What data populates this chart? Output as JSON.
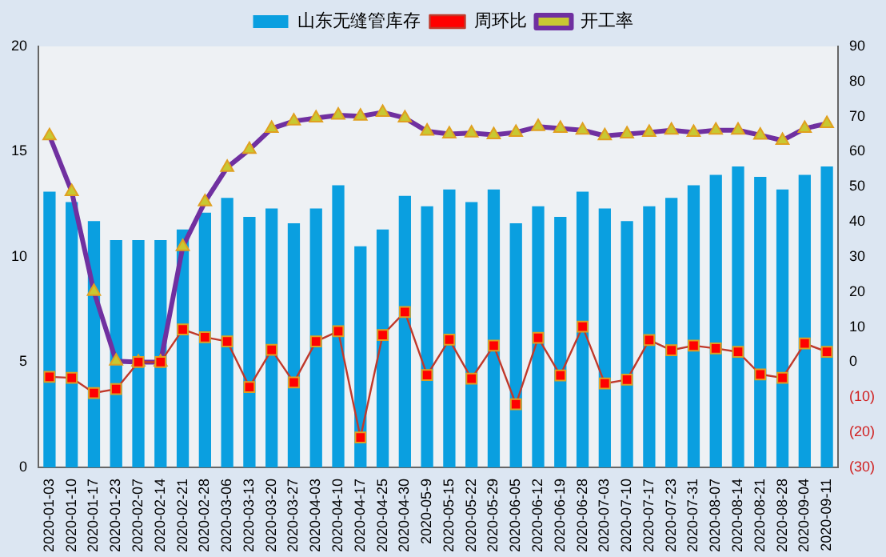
{
  "chart_data": {
    "type": "bar",
    "categories": [
      "2020-01-03",
      "2020-01-10",
      "2020-01-17",
      "2020-01-23",
      "2020-02-07",
      "2020-02-14",
      "2020-02-21",
      "2020-02-28",
      "2020-03-06",
      "2020-03-13",
      "2020-03-20",
      "2020-03-27",
      "2020-04-03",
      "2020-04-10",
      "2020-04-17",
      "2020-04-25",
      "2020-04-30",
      "2020-05-9",
      "2020-05-15",
      "2020-05-22",
      "2020-05-29",
      "2020-06-05",
      "2020-06-12",
      "2020-06-19",
      "2020-06-28",
      "2020-07-03",
      "2020-07-10",
      "2020-07-17",
      "2020-07-23",
      "2020-07-31",
      "2020-08-07",
      "2020-08-14",
      "2020-08-21",
      "2020-08-28",
      "2020-09-04",
      "2020-09-11"
    ],
    "series": [
      {
        "name": "山东无缝管库存",
        "color": "#0a9fe0",
        "values": [
          13.1,
          12.6,
          11.7,
          10.8,
          10.8,
          10.8,
          11.3,
          12.1,
          12.8,
          11.9,
          12.3,
          11.6,
          12.3,
          13.4,
          10.5,
          11.3,
          12.9,
          12.4,
          13.2,
          12.6,
          13.2,
          11.6,
          12.4,
          11.9,
          13.1,
          12.3,
          11.7,
          12.4,
          12.8,
          13.4,
          13.9,
          14.3,
          13.8,
          13.2,
          13.9,
          14.3
        ]
      },
      {
        "name": "周环比",
        "type": "line",
        "axis": "y2",
        "color": "#c0392b",
        "marker": "square",
        "values": [
          -4.2,
          -4.5,
          -8.8,
          -7.7,
          0,
          0,
          9.3,
          7.1,
          5.9,
          -7.1,
          3.5,
          -5.8,
          5.9,
          8.8,
          -21.5,
          7.7,
          14.3,
          -3.7,
          6.4,
          -4.7,
          4.7,
          -12,
          6.9,
          -3.8,
          10.1,
          -6.1,
          -5,
          6.3,
          3.4,
          4.7,
          3.9,
          2.9,
          -3.5,
          -4.5,
          5.3,
          2.9
        ]
      },
      {
        "name": "开工率",
        "type": "line",
        "axis": "y2",
        "color": "#7030a0",
        "marker": "triangle",
        "values": [
          64.5,
          48.6,
          20.1,
          0.3,
          0,
          0,
          32.9,
          45.7,
          55.5,
          60.6,
          66.6,
          68.7,
          69.6,
          70.4,
          70.1,
          71.2,
          69.6,
          65.8,
          65,
          65.3,
          64.8,
          65.5,
          67.1,
          66.6,
          66.1,
          64.5,
          65,
          65.5,
          66.1,
          65.5,
          66.1,
          66.1,
          64.7,
          63.2,
          66.6,
          68
        ]
      }
    ],
    "ylim": [
      0,
      20
    ],
    "yticks": [
      0,
      5,
      10,
      15,
      20
    ],
    "y2lim": [
      -30,
      90
    ],
    "y2ticks": [
      {
        "value": -30,
        "label": "(30)"
      },
      {
        "value": -20,
        "label": "(20)"
      },
      {
        "value": -10,
        "label": "(10)"
      },
      0,
      10,
      20,
      30,
      40,
      50,
      60,
      70,
      80,
      90
    ],
    "legend": "top",
    "grid": false
  }
}
